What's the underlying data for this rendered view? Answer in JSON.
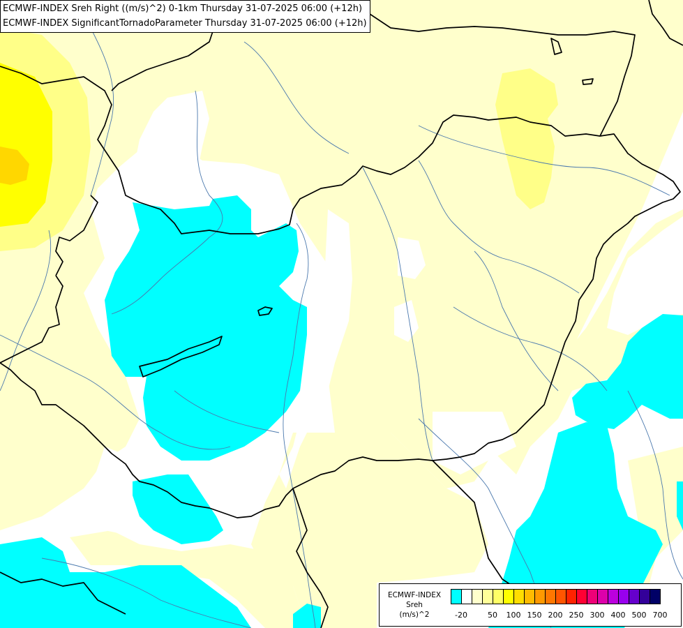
{
  "titles": [
    "ECMWF-INDEX Sreh Right ((m/s)^2) 0-1km Thursday 31-07-2025 06:00 (+12h)",
    "ECMWF-INDEX SignificantTornadoParameter Thursday 31-07-2025 06:00 (+12h)"
  ],
  "legend": {
    "name": [
      "ECMWF-INDEX",
      "Sreh",
      "(m/s)^2"
    ],
    "colors": [
      "#00ffff",
      "#ffffff",
      "#ffffcc",
      "#ffff99",
      "#ffff66",
      "#ffff00",
      "#ffdd00",
      "#ffbb00",
      "#ff9900",
      "#ff7700",
      "#ff5500",
      "#ff2200",
      "#ff0033",
      "#ee0077",
      "#dd00aa",
      "#bb00dd",
      "#9900ee",
      "#6600cc",
      "#330099",
      "#000066"
    ],
    "ticks": [
      "-20",
      "50",
      "100",
      "150",
      "200",
      "250",
      "300",
      "400",
      "500",
      "700"
    ]
  },
  "palette": {
    "cyan_region": "#00ffff",
    "pale_yellow": "#ffffcc",
    "light_yellow": "#ffff88",
    "yellow": "#ffff00",
    "gold": "#ffd700",
    "borders": "#000000",
    "rivers": "#4a78ad"
  }
}
